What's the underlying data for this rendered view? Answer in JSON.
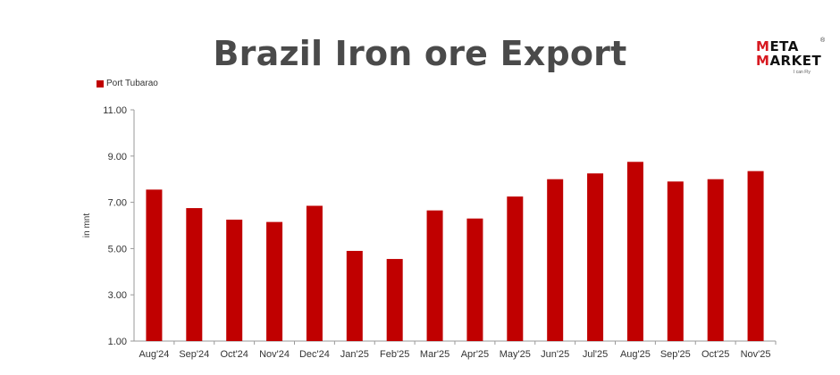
{
  "chart_data": {
    "type": "bar",
    "title": "Brazil Iron ore Export",
    "ylabel": "in mnt",
    "legend": "top-left",
    "grid": false,
    "ylim": [
      1.0,
      11.0
    ],
    "yticks": [
      "1.00",
      "3.00",
      "5.00",
      "7.00",
      "9.00",
      "11.00"
    ],
    "ytick_values": [
      1,
      3,
      5,
      7,
      9,
      11
    ],
    "color": "#c00000",
    "categories": [
      "Aug'24",
      "Sep'24",
      "Oct'24",
      "Nov'24",
      "Dec'24",
      "Jan'25",
      "Feb'25",
      "Mar'25",
      "Apr'25",
      "May'25",
      "Jun'25",
      "Jul'25",
      "Aug'25",
      "Sep'25",
      "Oct'25",
      "Nov'25"
    ],
    "series": [
      {
        "name": "Port Tubarao",
        "values": [
          7.55,
          6.75,
          6.25,
          6.15,
          6.85,
          4.9,
          4.55,
          6.65,
          6.3,
          7.25,
          8.0,
          8.25,
          8.75,
          7.9,
          8.0,
          8.35
        ]
      }
    ]
  },
  "logo": {
    "line1_accent": "M",
    "line1_rest": "ETA",
    "line2_accent": "M",
    "line2_rest": "ARKET",
    "registered": "®",
    "tagline": "I can Fly"
  }
}
